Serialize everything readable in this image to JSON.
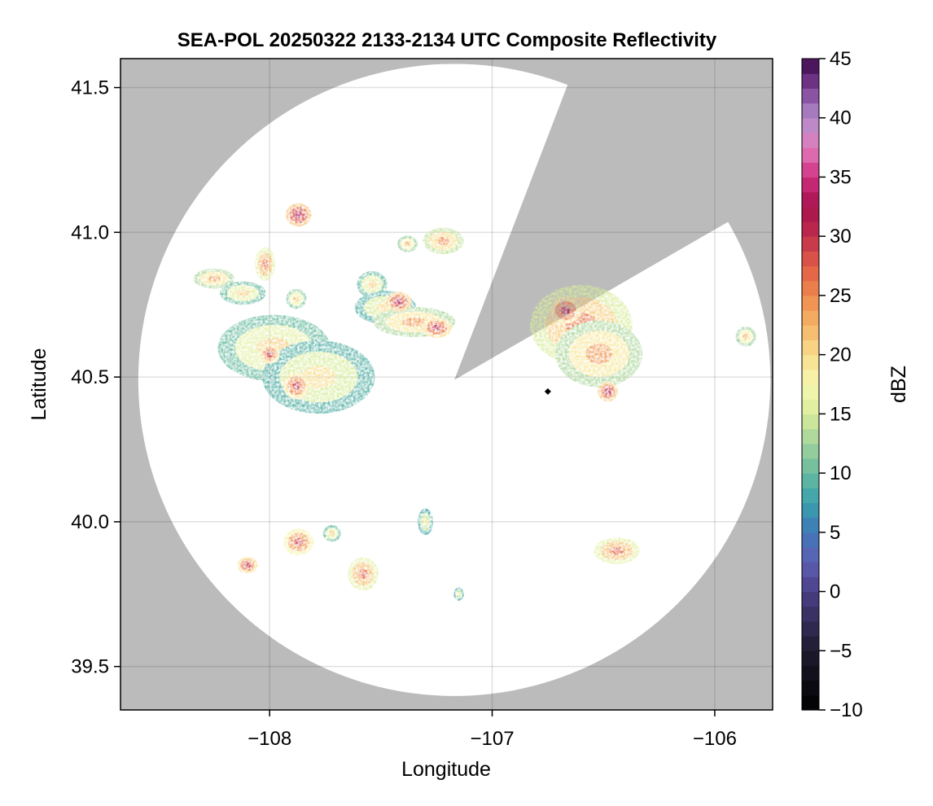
{
  "chart_data": {
    "type": "heatmap",
    "title": "SEA-POL 20250322 2133-2134 UTC Composite Reflectivity",
    "xlabel": "Longitude",
    "ylabel": "Latitude",
    "xlim": [
      -108.67,
      -105.74
    ],
    "ylim": [
      39.35,
      41.6
    ],
    "xticks": [
      -108,
      -107,
      -106
    ],
    "xtick_labels": [
      "−108",
      "−107",
      "−106"
    ],
    "yticks": [
      39.5,
      40.0,
      40.5,
      41.0,
      41.5
    ],
    "ytick_labels": [
      "39.5",
      "40.0",
      "40.5",
      "41.0",
      "41.5"
    ],
    "grid": true,
    "background_color": "#bbbbbb",
    "radar_site": {
      "lon": -107.17,
      "lat": 40.49
    },
    "range_ring_radius_deg_lon": 1.42,
    "blocked_sector_deg_from_north": [
      21,
      60
    ],
    "marker": {
      "lon": -106.75,
      "lat": 40.45,
      "symbol": "diamond",
      "color": "#000000"
    },
    "colorbar": {
      "label": "dBZ",
      "min": -10,
      "max": 45,
      "ticks": [
        -10,
        -5,
        0,
        5,
        10,
        15,
        20,
        25,
        30,
        35,
        40,
        45
      ],
      "tick_labels": [
        "−10",
        "−5",
        "0",
        "5",
        "10",
        "15",
        "20",
        "25",
        "30",
        "35",
        "40",
        "45"
      ],
      "colormap_stops": [
        {
          "v": -10,
          "c": "#000000"
        },
        {
          "v": -5,
          "c": "#1e1a2e"
        },
        {
          "v": 0,
          "c": "#4a3f86"
        },
        {
          "v": 2.5,
          "c": "#5d5fb3"
        },
        {
          "v": 5,
          "c": "#3f78b8"
        },
        {
          "v": 7.5,
          "c": "#3aa0ad"
        },
        {
          "v": 10,
          "c": "#67ba9f"
        },
        {
          "v": 12.5,
          "c": "#a2d29c"
        },
        {
          "v": 15,
          "c": "#d8ec9b"
        },
        {
          "v": 17.5,
          "c": "#f6f7b0"
        },
        {
          "v": 20,
          "c": "#f8dd8c"
        },
        {
          "v": 22.5,
          "c": "#f4b467"
        },
        {
          "v": 25,
          "c": "#ef8a4d"
        },
        {
          "v": 27.5,
          "c": "#e05d45"
        },
        {
          "v": 30,
          "c": "#c0304b"
        },
        {
          "v": 32.5,
          "c": "#a4114e"
        },
        {
          "v": 35,
          "c": "#d02f7f"
        },
        {
          "v": 37.5,
          "c": "#e07dbb"
        },
        {
          "v": 40,
          "c": "#b38dcb"
        },
        {
          "v": 42.5,
          "c": "#7d3f95"
        },
        {
          "v": 45,
          "c": "#3c0a4c"
        }
      ]
    },
    "echo_cells": [
      {
        "lon": -107.87,
        "lat": 41.06,
        "rx": 0.05,
        "ry": 0.035,
        "dbz": 30
      },
      {
        "lon": -108.02,
        "lat": 40.89,
        "rx": 0.04,
        "ry": 0.05,
        "dbz": 24
      },
      {
        "lon": -108.25,
        "lat": 40.84,
        "rx": 0.08,
        "ry": 0.03,
        "dbz": 21
      },
      {
        "lon": -108.12,
        "lat": 40.79,
        "rx": 0.09,
        "ry": 0.035,
        "dbz": 18
      },
      {
        "lon": -107.88,
        "lat": 40.77,
        "rx": 0.04,
        "ry": 0.03,
        "dbz": 19
      },
      {
        "lon": -107.98,
        "lat": 40.6,
        "rx": 0.22,
        "ry": 0.1,
        "dbz": 18
      },
      {
        "lon": -107.78,
        "lat": 40.5,
        "rx": 0.22,
        "ry": 0.11,
        "dbz": 17
      },
      {
        "lon": -107.88,
        "lat": 40.47,
        "rx": 0.05,
        "ry": 0.04,
        "dbz": 27
      },
      {
        "lon": -108.0,
        "lat": 40.58,
        "rx": 0.04,
        "ry": 0.03,
        "dbz": 27
      },
      {
        "lon": -107.54,
        "lat": 40.82,
        "rx": 0.06,
        "ry": 0.04,
        "dbz": 18
      },
      {
        "lon": -107.48,
        "lat": 40.74,
        "rx": 0.12,
        "ry": 0.05,
        "dbz": 17
      },
      {
        "lon": -107.35,
        "lat": 40.69,
        "rx": 0.16,
        "ry": 0.045,
        "dbz": 21
      },
      {
        "lon": -107.25,
        "lat": 40.67,
        "rx": 0.06,
        "ry": 0.03,
        "dbz": 28
      },
      {
        "lon": -107.42,
        "lat": 40.76,
        "rx": 0.05,
        "ry": 0.03,
        "dbz": 29
      },
      {
        "lon": -107.22,
        "lat": 40.97,
        "rx": 0.08,
        "ry": 0.04,
        "dbz": 22
      },
      {
        "lon": -107.38,
        "lat": 40.96,
        "rx": 0.04,
        "ry": 0.025,
        "dbz": 20
      },
      {
        "lon": -106.6,
        "lat": 40.68,
        "rx": 0.2,
        "ry": 0.12,
        "dbz": 23
      },
      {
        "lon": -106.52,
        "lat": 40.58,
        "rx": 0.17,
        "ry": 0.1,
        "dbz": 21
      },
      {
        "lon": -106.67,
        "lat": 40.73,
        "rx": 0.06,
        "ry": 0.04,
        "dbz": 28
      },
      {
        "lon": -106.48,
        "lat": 40.45,
        "rx": 0.04,
        "ry": 0.03,
        "dbz": 29
      },
      {
        "lon": -105.86,
        "lat": 40.64,
        "rx": 0.04,
        "ry": 0.03,
        "dbz": 20
      },
      {
        "lon": -106.44,
        "lat": 39.9,
        "rx": 0.09,
        "ry": 0.04,
        "dbz": 24
      },
      {
        "lon": -107.87,
        "lat": 39.93,
        "rx": 0.06,
        "ry": 0.04,
        "dbz": 26
      },
      {
        "lon": -108.1,
        "lat": 39.85,
        "rx": 0.04,
        "ry": 0.025,
        "dbz": 28
      },
      {
        "lon": -107.58,
        "lat": 39.82,
        "rx": 0.06,
        "ry": 0.05,
        "dbz": 24
      },
      {
        "lon": -107.72,
        "lat": 39.96,
        "rx": 0.035,
        "ry": 0.025,
        "dbz": 18
      },
      {
        "lon": -107.3,
        "lat": 40.0,
        "rx": 0.03,
        "ry": 0.04,
        "dbz": 16
      },
      {
        "lon": -107.15,
        "lat": 39.75,
        "rx": 0.02,
        "ry": 0.02,
        "dbz": 16
      }
    ]
  }
}
